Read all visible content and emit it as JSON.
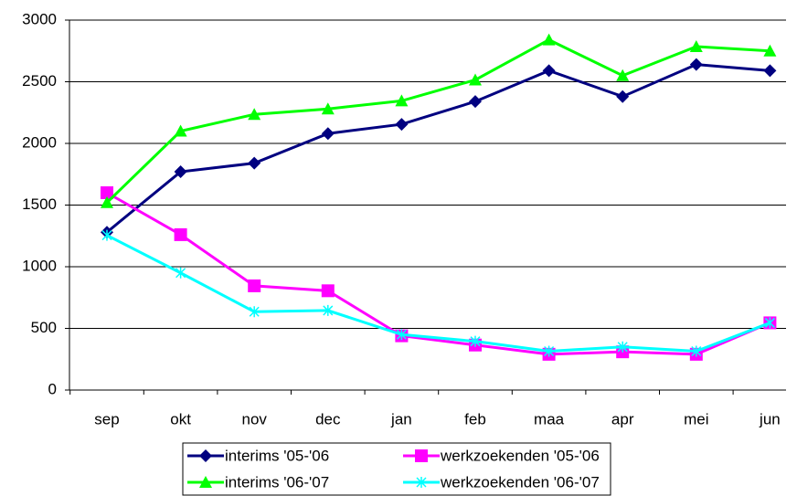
{
  "chart_data": {
    "type": "line",
    "categories": [
      "sep",
      "okt",
      "nov",
      "dec",
      "jan",
      "feb",
      "maa",
      "apr",
      "mei",
      "jun"
    ],
    "series": [
      {
        "name": "interims '05-'06",
        "color": "#000080",
        "marker": "diamond",
        "values": [
          1280,
          1770,
          1840,
          2080,
          2155,
          2340,
          2590,
          2380,
          2640,
          2590
        ]
      },
      {
        "name": "werkzoekenden '05-'06",
        "color": "#ff00ff",
        "marker": "square",
        "values": [
          1600,
          1260,
          845,
          805,
          440,
          365,
          290,
          310,
          290,
          545
        ]
      },
      {
        "name": "interims '06-'07",
        "color": "#00ff00",
        "marker": "triangle",
        "values": [
          1520,
          2100,
          2235,
          2280,
          2345,
          2515,
          2840,
          2550,
          2785,
          2750
        ]
      },
      {
        "name": "werkzoekenden '06-'07",
        "color": "#00ffff",
        "marker": "asterisk",
        "values": [
          1255,
          950,
          635,
          645,
          450,
          395,
          315,
          350,
          315,
          545
        ]
      }
    ],
    "ylim": [
      0,
      3000
    ],
    "yticks": [
      0,
      500,
      1000,
      1500,
      2000,
      2500,
      3000
    ],
    "grid": true
  }
}
